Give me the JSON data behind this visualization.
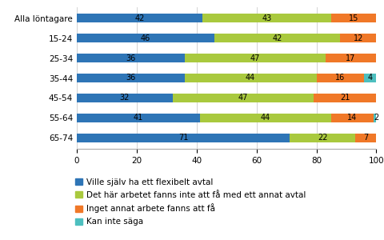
{
  "categories": [
    "Alla löntagare",
    "15-24",
    "25-34",
    "35-44",
    "45-54",
    "55-64",
    "65-74"
  ],
  "series": [
    {
      "name": "Ville själv ha ett flexibelt avtal",
      "values": [
        42,
        46,
        36,
        36,
        32,
        41,
        71
      ],
      "color": "#2E75B6"
    },
    {
      "name": "Det här arbetet fanns inte att få med ett annat avtal",
      "values": [
        43,
        42,
        47,
        44,
        47,
        44,
        22
      ],
      "color": "#A9C93E"
    },
    {
      "name": "Inget annat arbete fanns att få",
      "values": [
        15,
        12,
        17,
        16,
        21,
        14,
        7
      ],
      "color": "#F07828"
    },
    {
      "name": "Kan inte säga",
      "values": [
        0,
        0,
        0,
        4,
        0,
        2,
        0
      ],
      "color": "#4DBFBF"
    }
  ],
  "xlim": [
    0,
    100
  ],
  "xticks": [
    0,
    20,
    40,
    60,
    80,
    100
  ],
  "bar_height": 0.45,
  "label_fontsize": 7.0,
  "axis_fontsize": 7.5,
  "legend_fontsize": 7.5,
  "background_color": "#FFFFFF"
}
